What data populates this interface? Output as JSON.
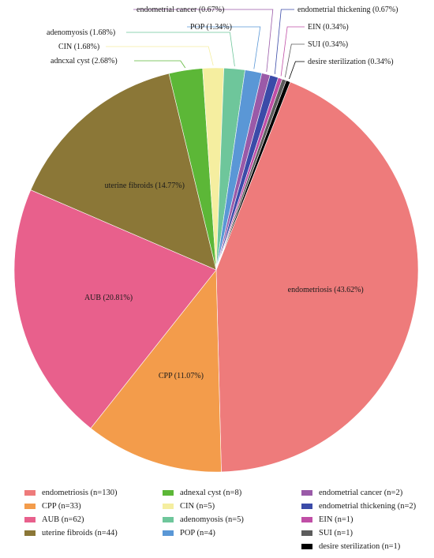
{
  "chart_data": {
    "type": "pie",
    "slices": [
      {
        "label": "endometriosis (43.62%)",
        "legend": "endometriosis (n=130)",
        "value": 130,
        "color": "#ee7b7b"
      },
      {
        "label": "CPP (11.07%)",
        "legend": "CPP (n=33)",
        "value": 33,
        "color": "#f39c4b"
      },
      {
        "label": "AUB (20.81%)",
        "legend": "AUB (n=62)",
        "value": 62,
        "color": "#e8608c"
      },
      {
        "label": "uterine fibroids (14.77%)",
        "legend": "uterine fibroids (n=44)",
        "value": 44,
        "color": "#8b7737"
      },
      {
        "label": "adncxal cyst (2.68%)",
        "legend": "adnexal cyst (n=8)",
        "value": 8,
        "color": "#5cb737"
      },
      {
        "label": "CIN (1.68%)",
        "legend": "CIN (n=5)",
        "value": 5,
        "color": "#f5eea0"
      },
      {
        "label": "adenomyosis (1.68%)",
        "legend": "adenomyosis (n=5)",
        "value": 5,
        "color": "#6ec69b"
      },
      {
        "label": "POP (1.34%)",
        "legend": "POP (n=4)",
        "value": 4,
        "color": "#5a97d6"
      },
      {
        "label": "endometrial cancer (0.67%)",
        "legend": "endometrial cancer (n=2)",
        "value": 2,
        "color": "#9a5aa8"
      },
      {
        "label": "endometrial thickening (0.67%)",
        "legend": "endometrial thickening (n=2)",
        "value": 2,
        "color": "#3b4ba8"
      },
      {
        "label": "EIN (0.34%)",
        "legend": "EIN (n=1)",
        "value": 1,
        "color": "#c04ea6"
      },
      {
        "label": "SUI (0.34%)",
        "legend": "SUI (n=1)",
        "value": 1,
        "color": "#5c5c5c"
      },
      {
        "label": "desire sterilization (0.34%)",
        "legend": "desire sterilization (n=1)",
        "value": 1,
        "color": "#000000"
      }
    ],
    "legend_position": "bottom"
  }
}
